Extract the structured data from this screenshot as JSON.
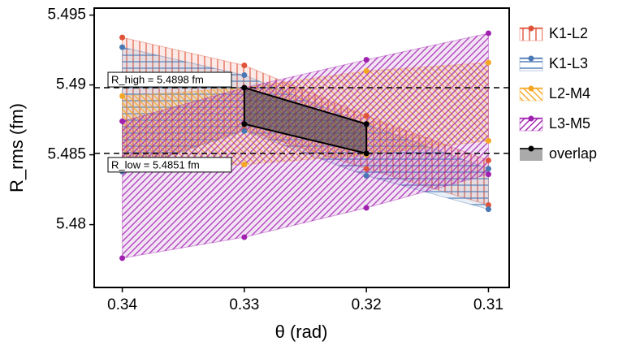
{
  "chart_data": {
    "type": "band",
    "xlabel": "θ (rad)",
    "ylabel": "R_rms (fm)",
    "xlim": [
      0.3423,
      0.3083
    ],
    "ylim": [
      5.4755,
      5.4955
    ],
    "xticks": [
      0.34,
      0.33,
      0.32,
      0.31
    ],
    "yticks": [
      5.48,
      5.485,
      5.49,
      5.495
    ],
    "x": [
      0.34,
      0.33,
      0.32,
      0.31
    ],
    "series": [
      {
        "name": "K1-L2",
        "color": "#e0533a",
        "hatch": "vertical",
        "upper": [
          5.4934,
          5.4914,
          5.4878,
          5.4846
        ],
        "lower": [
          5.4838,
          5.4868,
          5.484,
          5.4814
        ]
      },
      {
        "name": "K1-L3",
        "color": "#4a78b5",
        "hatch": "horizontal",
        "upper": [
          5.4927,
          5.4907,
          5.4872,
          5.484
        ],
        "lower": [
          5.4838,
          5.4867,
          5.4835,
          5.4811
        ]
      },
      {
        "name": "L2-M4",
        "color": "#f5a623",
        "hatch": "backslash",
        "upper": [
          5.4892,
          5.4898,
          5.491,
          5.4916
        ],
        "lower": [
          5.484,
          5.4843,
          5.485,
          5.486
        ]
      },
      {
        "name": "L3-M5",
        "color": "#a020b0",
        "hatch": "slash",
        "upper": [
          5.4874,
          5.4898,
          5.4918,
          5.4937
        ],
        "lower": [
          5.4776,
          5.4791,
          5.4812,
          5.4836
        ]
      }
    ],
    "overlap": {
      "name": "overlap",
      "color": "#000000",
      "x": [
        0.33,
        0.32,
        0.32,
        0.33
      ],
      "y": [
        5.4898,
        5.4872,
        5.4851,
        5.4872
      ]
    },
    "hlines": [
      {
        "value": 5.4898,
        "label": "R_high = 5.4898 fm"
      },
      {
        "value": 5.4851,
        "label": "R_low = 5.4851 fm"
      }
    ]
  }
}
